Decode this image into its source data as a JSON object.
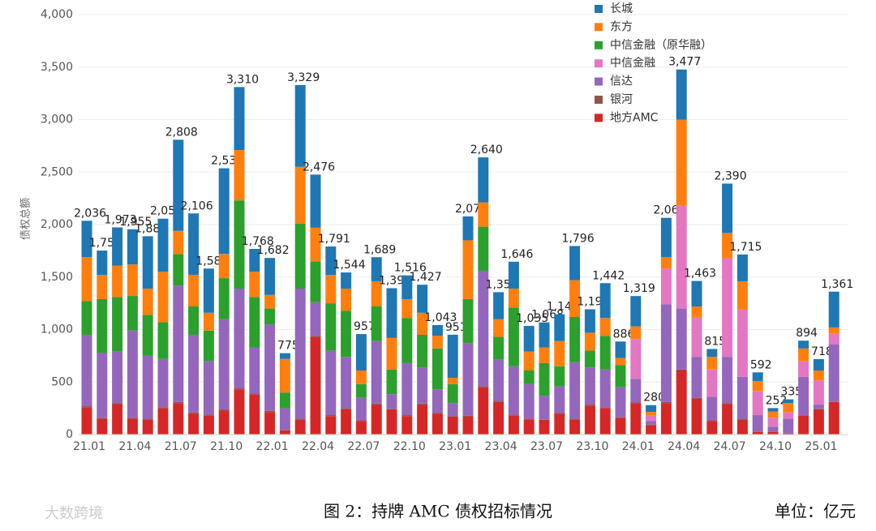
{
  "chart_data": {
    "type": "stacked_bar",
    "y_label": "债权总额",
    "caption": "图 2：持牌 AMC 债权招标情况",
    "unit": "单位：亿元",
    "watermark": "大数跨境",
    "categories": [
      "21.01",
      null,
      null,
      "21.04",
      null,
      null,
      "21.07",
      null,
      null,
      "21.10",
      null,
      null,
      "22.01",
      null,
      null,
      "22.04",
      null,
      null,
      "22.07",
      null,
      null,
      "22.10",
      null,
      null,
      "23.01",
      null,
      null,
      "23.04",
      null,
      null,
      "23.07",
      null,
      null,
      "23.10",
      null,
      null,
      "24.01",
      null,
      null,
      "24.04",
      null,
      null,
      "24.07",
      null,
      null,
      "24.10",
      null,
      null,
      "25.01",
      null
    ],
    "ylim": [
      0,
      4000
    ],
    "yticks": [
      0,
      500,
      {
        "value": 1000,
        "label": "1,000"
      },
      {
        "value": 1500,
        "label": "1,500"
      },
      {
        "value": 2000,
        "label": "2,000"
      },
      {
        "value": 2500,
        "label": "2,500"
      },
      {
        "value": 3000,
        "label": "3,000"
      },
      {
        "value": 3500,
        "label": "3,500"
      },
      {
        "value": 4000,
        "label": "4,000"
      }
    ],
    "grid": true,
    "legend": "top-right",
    "series": [
      {
        "name": "地方AMC",
        "color": "#d62728",
        "values": [
          260,
          150,
          290,
          150,
          140,
          250,
          300,
          200,
          180,
          230,
          430,
          380,
          215,
          40,
          140,
          930,
          175,
          240,
          130,
          285,
          240,
          175,
          285,
          200,
          170,
          170,
          450,
          310,
          180,
          145,
          140,
          200,
          140,
          275,
          250,
          160,
          300,
          90,
          300,
          610,
          340,
          130,
          290,
          140,
          25,
          25,
          10,
          180,
          240,
          310
        ]
      },
      {
        "name": "银河",
        "color": "#8c564b",
        "values": [
          10,
          10,
          10,
          10,
          10,
          10,
          10,
          10,
          10,
          10,
          10,
          10,
          10,
          5,
          10,
          10,
          10,
          10,
          5,
          10,
          5,
          10,
          10,
          5,
          5,
          10,
          10,
          10,
          10,
          5,
          5,
          5,
          10,
          10,
          10,
          5,
          5,
          5,
          10,
          10,
          10,
          5,
          10,
          10,
          5,
          5,
          0,
          5,
          5,
          5
        ]
      },
      {
        "name": "信达",
        "color": "#9467bd",
        "values": [
          680,
          620,
          490,
          830,
          600,
          460,
          1110,
          740,
          510,
          860,
          950,
          440,
          825,
          205,
          1240,
          320,
          615,
          490,
          215,
          595,
          140,
          495,
          345,
          225,
          125,
          690,
          1100,
          395,
          460,
          330,
          225,
          255,
          540,
          355,
          360,
          285,
          225,
          35,
          930,
          580,
          390,
          225,
          440,
          400,
          155,
          45,
          140,
          365,
          40,
          545
        ]
      },
      {
        "name": "中信金融",
        "color": "#e377c2",
        "values": [
          0,
          0,
          0,
          0,
          0,
          0,
          0,
          0,
          0,
          0,
          0,
          0,
          0,
          0,
          0,
          0,
          0,
          0,
          0,
          0,
          0,
          0,
          0,
          0,
          0,
          0,
          0,
          0,
          0,
          0,
          0,
          0,
          0,
          0,
          0,
          0,
          380,
          55,
          340,
          980,
          380,
          260,
          940,
          640,
          230,
          85,
          60,
          150,
          230,
          100
        ]
      },
      {
        "name": "中信金融（原华融）",
        "color": "#2ca02c",
        "values": [
          320,
          510,
          520,
          330,
          390,
          350,
          300,
          270,
          290,
          390,
          840,
          480,
          150,
          150,
          620,
          390,
          450,
          440,
          130,
          330,
          235,
          430,
          310,
          390,
          180,
          420,
          420,
          215,
          560,
          130,
          310,
          190,
          430,
          160,
          320,
          210,
          0,
          0,
          0,
          0,
          0,
          0,
          0,
          0,
          0,
          0,
          0,
          0,
          0,
          0
        ]
      },
      {
        "name": "东方",
        "color": "#ff7f0e",
        "values": [
          420,
          230,
          300,
          300,
          250,
          480,
          220,
          300,
          170,
          230,
          480,
          240,
          130,
          320,
          540,
          320,
          270,
          210,
          130,
          240,
          300,
          180,
          210,
          120,
          60,
          560,
          230,
          170,
          180,
          180,
          150,
          240,
          350,
          170,
          170,
          70,
          120,
          30,
          110,
          820,
          100,
          120,
          240,
          270,
          95,
          60,
          90,
          120,
          95,
          60
        ]
      },
      {
        "name": "长城",
        "color": "#1f77b4",
        "values": [
          346,
          232,
          363,
          335,
          499,
          506,
          868,
          586,
          421,
          816,
          600,
          218,
          352,
          55,
          779,
          506,
          271,
          154,
          347,
          229,
          474,
          226,
          267,
          103,
          411,
          228,
          430,
          256,
          256,
          245,
          238,
          256,
          326,
          223,
          332,
          156,
          289,
          65,
          374,
          477,
          243,
          75,
          470,
          255,
          82,
          32,
          35,
          74,
          108,
          341
        ]
      }
    ],
    "totals": [
      2036,
      1752,
      1973,
      1955,
      1889,
      2056,
      2808,
      2106,
      1581,
      2536,
      3310,
      1768,
      1682,
      775,
      3329,
      2476,
      1791,
      1544,
      957,
      1689,
      1394,
      1516,
      1427,
      1043,
      951,
      2078,
      2640,
      1356,
      1646,
      1035,
      1068,
      1146,
      1796,
      1193,
      1442,
      886,
      1319,
      280,
      2064,
      3477,
      1463,
      815,
      2390,
      1715,
      592,
      252,
      335,
      894,
      718,
      1361
    ],
    "total_labels": [
      "2,036",
      "1,752",
      "1,973",
      "1,955",
      "1,889",
      "2,056",
      "2,808",
      "2,106",
      "1,581",
      "2,536",
      "3,310",
      "1,768",
      "1,682",
      "775",
      "3,329",
      "2,476",
      "1,791",
      "1,544",
      "957",
      "1,689",
      "1,394",
      "1,516",
      "1,427",
      "1,043",
      "951",
      "2,078",
      "2,640",
      "1,356",
      "1,646",
      "1,035",
      "1,068",
      "1,146",
      "1,796",
      "1,193",
      "1,442",
      "886",
      "1,319",
      "280",
      "2,064",
      "3,477",
      "1,463",
      "815",
      "2,390",
      "1,715",
      "592",
      "252",
      "335",
      "894",
      "718",
      "1,361"
    ]
  }
}
